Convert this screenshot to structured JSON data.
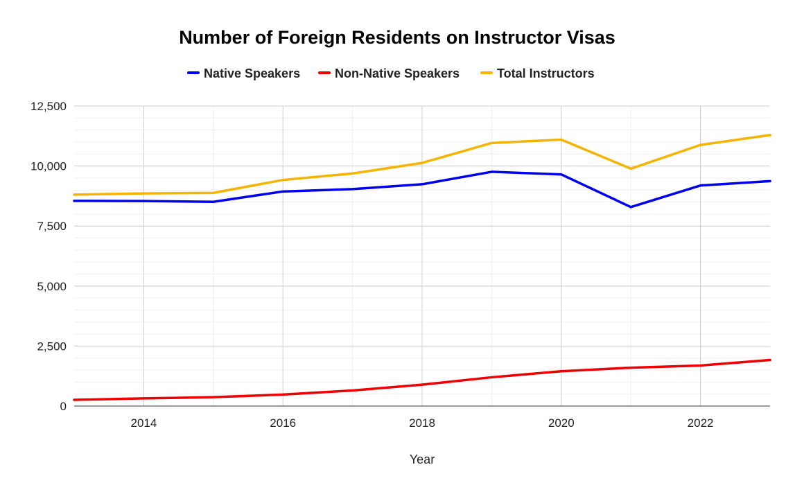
{
  "chart_data": {
    "type": "line",
    "title": "Number of Foreign Residents on Instructor Visas",
    "xlabel": "Year",
    "ylabel": "",
    "x": [
      2013,
      2014,
      2015,
      2016,
      2017,
      2018,
      2019,
      2020,
      2021,
      2022,
      2023
    ],
    "xlim": [
      2013,
      2023
    ],
    "ylim": [
      0,
      12500
    ],
    "x_ticks": [
      2014,
      2016,
      2018,
      2020,
      2022
    ],
    "x_tick_labels": [
      "2014",
      "2016",
      "2018",
      "2020",
      "2022"
    ],
    "y_ticks": [
      0,
      2500,
      5000,
      7500,
      10000,
      12500
    ],
    "y_tick_labels": [
      "0",
      "2,500",
      "5,000",
      "7,500",
      "10,000",
      "12,500"
    ],
    "grid": true,
    "legend_position": "top",
    "series": [
      {
        "name": "Native Speakers",
        "color": "#0000ee",
        "values": [
          8550,
          8540,
          8510,
          8940,
          9040,
          9240,
          9760,
          9650,
          8290,
          9190,
          9370
        ]
      },
      {
        "name": "Non-Native Speakers",
        "color": "#ee0000",
        "values": [
          260,
          320,
          370,
          480,
          650,
          890,
          1200,
          1450,
          1600,
          1690,
          1920
        ]
      },
      {
        "name": "Total Instructors",
        "color": "#f4b400",
        "values": [
          8810,
          8860,
          8880,
          9420,
          9690,
          10130,
          10960,
          11100,
          9890,
          10880,
          11290
        ]
      }
    ]
  }
}
